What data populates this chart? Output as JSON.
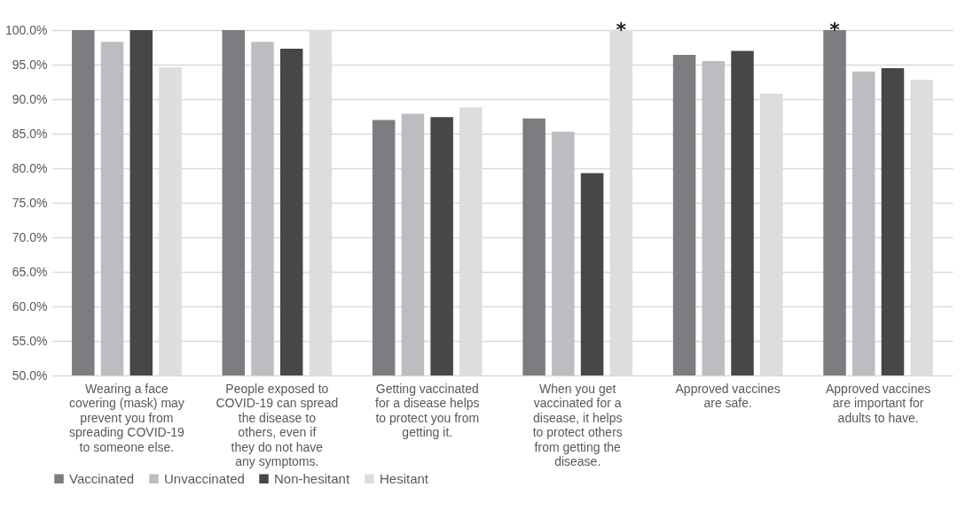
{
  "chart_data": {
    "type": "bar",
    "categories": [
      "Wearing a face covering (mask) may prevent you from spreading COVID-19 to someone else.",
      "People exposed to COVID-19 can spread the disease to others, even if they do not have any symptoms.",
      "Getting vaccinated for a disease helps to protect you from getting it.",
      "When you get vaccinated for a disease, it helps to protect others from getting the disease.",
      "Approved vaccines are safe.",
      "Approved vaccines are important for adults to have."
    ],
    "series": [
      {
        "name": "Vaccinated",
        "color": "#7c7d81",
        "values": [
          100,
          100,
          87.0,
          87.2,
          96.4,
          100
        ],
        "value_labels": [
          null,
          null,
          null,
          null,
          null,
          "*"
        ]
      },
      {
        "name": "Unvaccinated",
        "color": "#bcbdc0",
        "values": [
          98.3,
          98.3,
          87.9,
          85.3,
          95.5,
          94.0
        ]
      },
      {
        "name": "Non-hesitant",
        "color": "#464749",
        "values": [
          100,
          97.3,
          87.4,
          79.3,
          97.0,
          94.5
        ]
      },
      {
        "name": "Hesitant",
        "color": "#dcdddf",
        "values": [
          94.6,
          100,
          88.8,
          100,
          90.8,
          92.8
        ],
        "value_labels": [
          null,
          null,
          null,
          "*",
          null,
          null
        ]
      }
    ],
    "ylim": [
      50,
      100
    ],
    "yticks": [
      {
        "value": 50,
        "label": "50.0%"
      },
      {
        "value": 55,
        "label": "55.0%"
      },
      {
        "value": 60,
        "label": "60.0%"
      },
      {
        "value": 65,
        "label": "65.0%"
      },
      {
        "value": 70,
        "label": "70.0%"
      },
      {
        "value": 75,
        "label": "75.0%"
      },
      {
        "value": 80,
        "label": "80.0%"
      },
      {
        "value": 85,
        "label": "85.0%"
      },
      {
        "value": 90,
        "label": "90.0%"
      },
      {
        "value": 95,
        "label": "95.0%"
      },
      {
        "value": 100,
        "label": "100.0%"
      }
    ],
    "grid": "y",
    "legend": "bottom"
  }
}
